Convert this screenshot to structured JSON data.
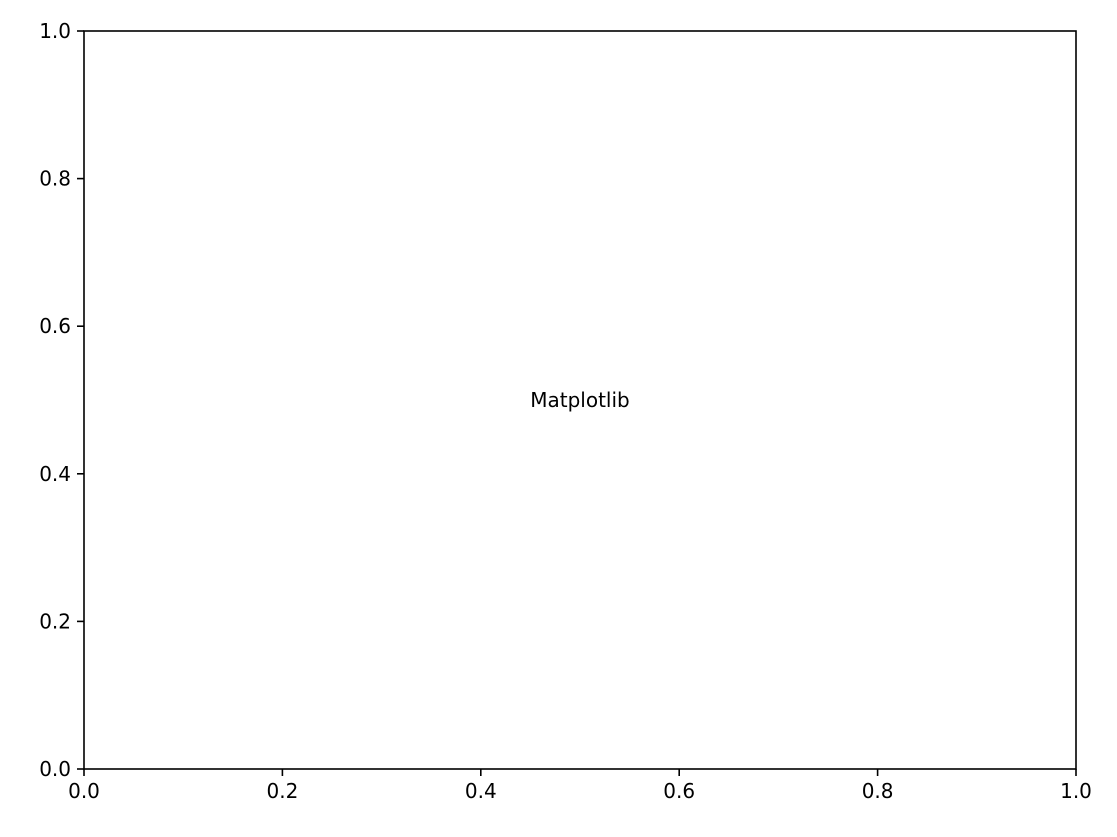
{
  "chart_data": {
    "type": "scatter",
    "title": "",
    "xlabel": "",
    "ylabel": "",
    "xlim": [
      0.0,
      1.0
    ],
    "ylim": [
      0.0,
      1.0
    ],
    "x_ticks": [
      0.0,
      0.2,
      0.4,
      0.6,
      0.8,
      1.0
    ],
    "y_ticks": [
      0.0,
      0.2,
      0.4,
      0.6,
      0.8,
      1.0
    ],
    "x_tick_labels": [
      "0.0",
      "0.2",
      "0.4",
      "0.6",
      "0.8",
      "1.0"
    ],
    "y_tick_labels": [
      "0.0",
      "0.2",
      "0.4",
      "0.6",
      "0.8",
      "1.0"
    ],
    "grid": false,
    "series": [],
    "annotations": [
      {
        "text": "Matplotlib",
        "x": 0.5,
        "y": 0.5
      }
    ],
    "colors": {
      "axis": "#000000",
      "background": "#ffffff",
      "text": "#000000"
    }
  }
}
